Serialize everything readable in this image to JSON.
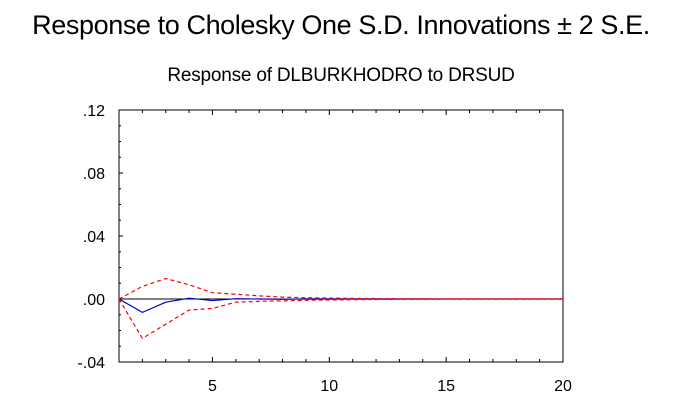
{
  "page": {
    "title": "Response to Cholesky One S.D. Innovations ± 2 S.E."
  },
  "chart_data": {
    "type": "line",
    "title": "Response of DLBURKHODRO to DRSUD",
    "xlabel": "",
    "ylabel": "",
    "xlim": [
      1,
      20
    ],
    "ylim": [
      -0.04,
      0.12
    ],
    "x_ticks": [
      5,
      10,
      15,
      20
    ],
    "x_tick_labels": [
      "5",
      "10",
      "15",
      "20"
    ],
    "y_ticks": [
      -0.04,
      0.0,
      0.04,
      0.08,
      0.12
    ],
    "y_tick_labels": [
      "-.04",
      ".00",
      ".04",
      ".08",
      ".12"
    ],
    "grid": false,
    "legend": "none",
    "zero_line": true,
    "x": [
      1,
      2,
      3,
      4,
      5,
      6,
      7,
      8,
      9,
      10,
      11,
      12,
      13,
      14,
      15,
      16,
      17,
      18,
      19,
      20
    ],
    "series": [
      {
        "role": "response",
        "color": "#0000cc",
        "dash": "solid",
        "values": [
          0.0,
          -0.0085,
          -0.002,
          0.0005,
          -0.001,
          0.0002,
          0.0,
          -0.0002,
          0.0001,
          0.0,
          0.0,
          0.0,
          0.0,
          0.0,
          0.0,
          0.0,
          0.0,
          0.0,
          0.0,
          0.0
        ]
      },
      {
        "role": "upper-band",
        "color": "#ff0000",
        "dash": "dashed",
        "values": [
          0.0,
          0.008,
          0.013,
          0.009,
          0.004,
          0.003,
          0.002,
          0.0012,
          0.0008,
          0.0006,
          0.0004,
          0.0003,
          0.0002,
          0.0002,
          0.0001,
          0.0001,
          0.0001,
          0.0001,
          0.0001,
          0.0001
        ]
      },
      {
        "role": "lower-band",
        "color": "#ff0000",
        "dash": "dashed",
        "values": [
          0.0,
          -0.025,
          -0.016,
          -0.007,
          -0.006,
          -0.002,
          -0.0015,
          -0.0012,
          -0.0008,
          -0.0006,
          -0.0004,
          -0.0003,
          -0.0002,
          -0.0002,
          -0.0001,
          -0.0001,
          -0.0001,
          -0.0001,
          -0.0001,
          -0.0001
        ]
      }
    ]
  },
  "colors": {
    "background": "#ffffff",
    "axis": "#000000",
    "zero_line": "#000000",
    "response": "#0000cc",
    "band": "#ff0000"
  }
}
